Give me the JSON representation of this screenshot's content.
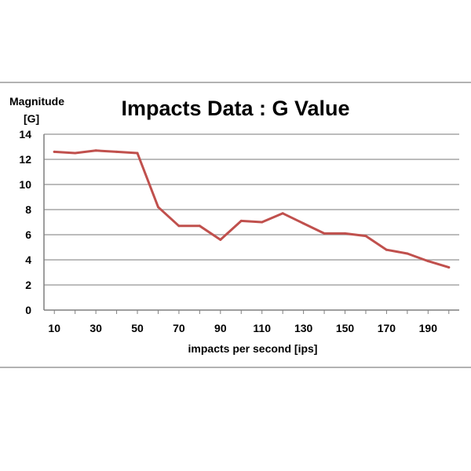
{
  "chart_data": {
    "type": "line",
    "title": "Impacts Data : G Value",
    "xlabel": "impacts per second [ips]",
    "ylabel_lines": [
      "Magnitude",
      "[G]"
    ],
    "x": [
      10,
      20,
      30,
      40,
      50,
      60,
      70,
      80,
      90,
      100,
      110,
      120,
      130,
      140,
      150,
      160,
      170,
      180,
      190,
      200
    ],
    "series": [
      {
        "values": [
          12.6,
          12.5,
          12.7,
          12.6,
          12.5,
          8.2,
          6.7,
          6.7,
          5.6,
          7.1,
          7.0,
          7.7,
          6.9,
          6.1,
          6.1,
          5.9,
          4.8,
          4.5,
          3.9,
          3.4
        ],
        "color": "#c0504d"
      }
    ],
    "x_tick_labels": [
      "10",
      "30",
      "50",
      "70",
      "90",
      "110",
      "130",
      "150",
      "170",
      "190"
    ],
    "y_tick_labels": [
      "0",
      "2",
      "4",
      "6",
      "8",
      "10",
      "12",
      "14"
    ],
    "ylim": [
      0,
      14
    ],
    "grid": true,
    "gridline_color": "#a6a6a6",
    "axis_color": "#7f7f7f"
  }
}
